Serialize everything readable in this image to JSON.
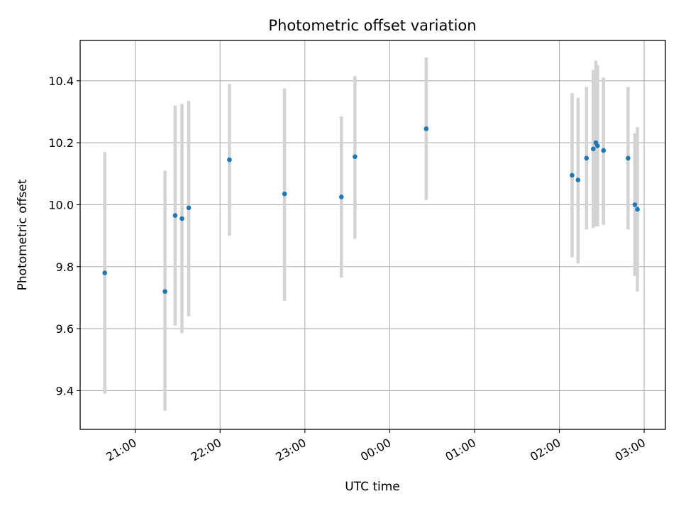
{
  "chart_data": {
    "type": "scatter",
    "title": "Photometric offset variation",
    "xlabel": "UTC time",
    "ylabel": "Photometric offset",
    "x_unit": "UTC time (hours since 00:00, negative = previous evening)",
    "xlim": [
      -3.65,
      3.25
    ],
    "ylim": [
      9.275,
      10.53
    ],
    "grid": true,
    "x_ticks": [
      {
        "value": -3,
        "label": "21:00"
      },
      {
        "value": -2,
        "label": "22:00"
      },
      {
        "value": -1,
        "label": "23:00"
      },
      {
        "value": 0,
        "label": "00:00"
      },
      {
        "value": 1,
        "label": "01:00"
      },
      {
        "value": 2,
        "label": "02:00"
      },
      {
        "value": 3,
        "label": "03:00"
      }
    ],
    "y_ticks": [
      {
        "value": 9.4,
        "label": "9.4"
      },
      {
        "value": 9.6,
        "label": "9.6"
      },
      {
        "value": 9.8,
        "label": "9.8"
      },
      {
        "value": 10.0,
        "label": "10.0"
      },
      {
        "value": 10.2,
        "label": "10.2"
      },
      {
        "value": 10.4,
        "label": "10.4"
      }
    ],
    "point_color": "#1f77b4",
    "errorbar_color": "#d3d3d3",
    "points": [
      {
        "time": "20:38",
        "x": -3.36,
        "y": 9.78,
        "ylo": 9.39,
        "yhi": 10.17
      },
      {
        "time": "21:21",
        "x": -2.65,
        "y": 9.72,
        "ylo": 9.335,
        "yhi": 10.11
      },
      {
        "time": "21:28",
        "x": -2.53,
        "y": 9.965,
        "ylo": 9.61,
        "yhi": 10.32
      },
      {
        "time": "21:33",
        "x": -2.45,
        "y": 9.955,
        "ylo": 9.585,
        "yhi": 10.325
      },
      {
        "time": "21:38",
        "x": -2.37,
        "y": 9.99,
        "ylo": 9.64,
        "yhi": 10.335
      },
      {
        "time": "22:06",
        "x": -1.89,
        "y": 10.145,
        "ylo": 9.9,
        "yhi": 10.39
      },
      {
        "time": "22:45",
        "x": -1.24,
        "y": 10.035,
        "ylo": 9.69,
        "yhi": 10.375
      },
      {
        "time": "23:25",
        "x": -0.57,
        "y": 10.025,
        "ylo": 9.765,
        "yhi": 10.285
      },
      {
        "time": "23:35",
        "x": -0.41,
        "y": 10.155,
        "ylo": 9.89,
        "yhi": 10.415
      },
      {
        "time": "00:26",
        "x": 0.43,
        "y": 10.245,
        "ylo": 10.015,
        "yhi": 10.475
      },
      {
        "time": "02:08",
        "x": 2.15,
        "y": 10.095,
        "ylo": 9.83,
        "yhi": 10.36
      },
      {
        "time": "02:13",
        "x": 2.22,
        "y": 10.08,
        "ylo": 9.81,
        "yhi": 10.345
      },
      {
        "time": "02:19",
        "x": 2.32,
        "y": 10.15,
        "ylo": 9.92,
        "yhi": 10.38
      },
      {
        "time": "02:24",
        "x": 2.4,
        "y": 10.18,
        "ylo": 9.925,
        "yhi": 10.435
      },
      {
        "time": "02:26",
        "x": 2.43,
        "y": 10.2,
        "ylo": 9.93,
        "yhi": 10.465
      },
      {
        "time": "02:27",
        "x": 2.45,
        "y": 10.19,
        "ylo": 9.93,
        "yhi": 10.45
      },
      {
        "time": "02:31",
        "x": 2.52,
        "y": 10.175,
        "ylo": 9.935,
        "yhi": 10.41
      },
      {
        "time": "02:49",
        "x": 2.81,
        "y": 10.15,
        "ylo": 9.92,
        "yhi": 10.38
      },
      {
        "time": "02:53",
        "x": 2.89,
        "y": 10.0,
        "ylo": 9.77,
        "yhi": 10.23
      },
      {
        "time": "02:55",
        "x": 2.92,
        "y": 9.985,
        "ylo": 9.72,
        "yhi": 10.25
      }
    ]
  }
}
